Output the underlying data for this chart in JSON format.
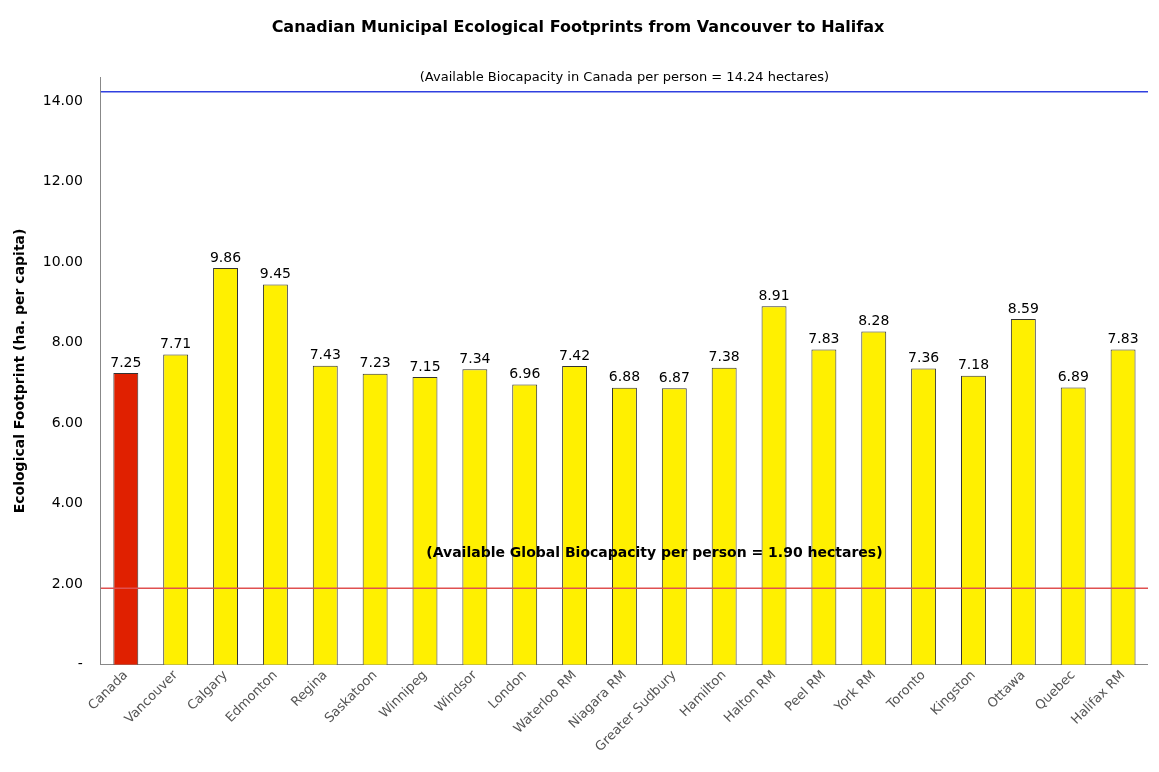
{
  "chart_data": {
    "type": "bar",
    "title": "Canadian Municipal Ecological Footprints from Vancouver to Halifax",
    "ylabel": "Ecological Footprint (ha. per capita)",
    "categories": [
      "Canada",
      "Vancouver",
      "Calgary",
      "Edmonton",
      "Regina",
      "Saskatoon",
      "Winnipeg",
      "Windsor",
      "London",
      "Waterloo RM",
      "Niagara RM",
      "Greater Sudbury",
      "Hamilton",
      "Halton RM",
      "Peel RM",
      "York RM",
      "Toronto",
      "Kingston",
      "Ottawa",
      "Quebec",
      "Halifax RM"
    ],
    "values": [
      7.25,
      7.71,
      9.86,
      9.45,
      7.43,
      7.23,
      7.15,
      7.34,
      6.96,
      7.42,
      6.88,
      6.87,
      7.38,
      8.91,
      7.83,
      8.28,
      7.36,
      7.18,
      8.59,
      6.89,
      7.83
    ],
    "colors": [
      "#e02000",
      "#fff000",
      "#fff000",
      "#fff000",
      "#fff000",
      "#fff000",
      "#fff000",
      "#fff000",
      "#fff000",
      "#fff000",
      "#fff000",
      "#fff000",
      "#fff000",
      "#fff000",
      "#fff000",
      "#fff000",
      "#fff000",
      "#fff000",
      "#fff000",
      "#fff000",
      "#fff000"
    ],
    "ylim": [
      0,
      14.6
    ],
    "yticks": [
      {
        "value": 0,
        "label": "-"
      },
      {
        "value": 2,
        "label": "2.00"
      },
      {
        "value": 4,
        "label": "4.00"
      },
      {
        "value": 6,
        "label": "6.00"
      },
      {
        "value": 8,
        "label": "8.00"
      },
      {
        "value": 10,
        "label": "10.00"
      },
      {
        "value": 12,
        "label": "12.00"
      },
      {
        "value": 14,
        "label": "14.00"
      }
    ],
    "ref_lines": [
      {
        "axis": "y",
        "value": 14.24,
        "label": "(Available Biocapacity in Canada per person = 14.24 hectares)",
        "color": "#3040e0"
      },
      {
        "axis": "y",
        "value": 1.9,
        "label": "(Available Global Biocapacity per person = 1.90 hectares)",
        "color": "#e05050"
      }
    ],
    "data_labels": true,
    "grid": false,
    "legend": false
  }
}
